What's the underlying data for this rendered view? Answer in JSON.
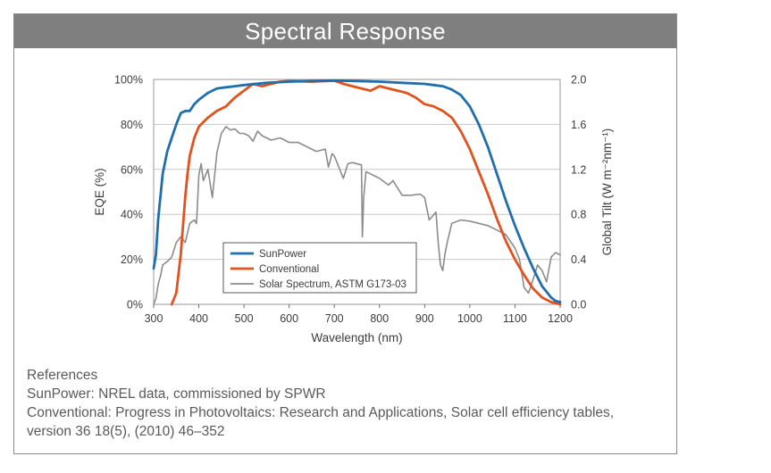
{
  "header": {
    "title": "Spectral Response"
  },
  "references": {
    "heading": "References",
    "lines": [
      "SunPower: NREL data, commissioned by SPWR",
      "Conventional: Progress in Photovoltaics: Research and Applications, Solar cell efficiency tables,",
      "version 36 18(5), (2010) 46–352"
    ]
  },
  "chart_data": {
    "type": "line",
    "title": "",
    "xlabel": "Wavelength (nm)",
    "ylabel": "EQE (%)",
    "y2label": "Global Tilt (W m⁻²nm⁻¹)",
    "xlim": [
      300,
      1200
    ],
    "ylim": [
      0,
      100
    ],
    "y2lim": [
      0,
      2.0
    ],
    "x_ticks": [
      "300",
      "400",
      "500",
      "600",
      "700",
      "800",
      "900",
      "1000",
      "1100",
      "1200"
    ],
    "y_ticks": [
      "0%",
      "20%",
      "40%",
      "60%",
      "80%",
      "100%"
    ],
    "y2_ticks": [
      "0.0",
      "0.4",
      "0.8",
      "1.2",
      "1.6",
      "2.0"
    ],
    "grid": true,
    "legend_placement": "bottom-center",
    "series": [
      {
        "name": "SunPower",
        "color": "#1f6fad",
        "axis": "left",
        "x": [
          300,
          305,
          310,
          320,
          330,
          340,
          350,
          360,
          370,
          380,
          390,
          400,
          420,
          440,
          460,
          480,
          500,
          550,
          600,
          650,
          700,
          750,
          800,
          850,
          900,
          920,
          940,
          960,
          980,
          1000,
          1020,
          1040,
          1060,
          1080,
          1100,
          1120,
          1140,
          1160,
          1180,
          1190,
          1200
        ],
        "values": [
          16,
          22,
          38,
          58,
          68,
          74,
          80,
          85,
          86,
          86,
          89,
          91,
          94,
          96,
          96.5,
          97,
          97.5,
          98.5,
          99,
          99.3,
          99.5,
          99.3,
          99,
          98.5,
          98,
          97.5,
          97,
          95.5,
          93,
          88,
          80,
          70,
          58,
          46,
          35,
          25,
          16,
          8,
          3,
          1.5,
          1
        ]
      },
      {
        "name": "Conventional",
        "color": "#e0531f",
        "axis": "left",
        "x": [
          340,
          350,
          360,
          370,
          375,
          380,
          390,
          400,
          420,
          440,
          460,
          480,
          500,
          520,
          540,
          560,
          580,
          600,
          650,
          700,
          720,
          740,
          760,
          780,
          800,
          820,
          840,
          860,
          880,
          900,
          920,
          940,
          960,
          980,
          1000,
          1020,
          1040,
          1060,
          1080,
          1100,
          1120,
          1140,
          1160,
          1180,
          1200
        ],
        "values": [
          0,
          5,
          22,
          48,
          58,
          66,
          74,
          79,
          83,
          86,
          88,
          92,
          95,
          98,
          97,
          98,
          99,
          99.3,
          99,
          99.5,
          98,
          97,
          96,
          95,
          97,
          96,
          95,
          94,
          92,
          89,
          88,
          86,
          83,
          77,
          69,
          59,
          49,
          38,
          28,
          20,
          13,
          7,
          3,
          1,
          0
        ]
      },
      {
        "name": "Solar Spectrum, ASTM G173-03",
        "color": "#8c8c8c",
        "axis": "right",
        "x": [
          300,
          305,
          310,
          315,
          320,
          330,
          340,
          350,
          360,
          370,
          380,
          390,
          395,
          400,
          405,
          410,
          420,
          430,
          440,
          450,
          460,
          470,
          480,
          490,
          500,
          510,
          520,
          530,
          540,
          560,
          580,
          600,
          620,
          640,
          660,
          680,
          687,
          695,
          700,
          720,
          730,
          740,
          760,
          762,
          765,
          770,
          800,
          820,
          830,
          850,
          870,
          890,
          900,
          910,
          925,
          930,
          935,
          940,
          945,
          950,
          960,
          980,
          1000,
          1020,
          1040,
          1060,
          1080,
          1100,
          1110,
          1120,
          1130,
          1140,
          1150,
          1160,
          1170,
          1180,
          1190,
          1200
        ],
        "values": [
          0.0,
          0.05,
          0.18,
          0.25,
          0.35,
          0.38,
          0.42,
          0.55,
          0.6,
          0.55,
          0.72,
          0.75,
          0.72,
          1.15,
          1.25,
          1.1,
          1.2,
          0.95,
          1.35,
          1.52,
          1.58,
          1.55,
          1.56,
          1.52,
          1.52,
          1.5,
          1.45,
          1.54,
          1.5,
          1.46,
          1.48,
          1.44,
          1.44,
          1.4,
          1.36,
          1.38,
          1.22,
          1.34,
          1.32,
          1.12,
          1.25,
          1.26,
          1.24,
          0.6,
          0.95,
          1.18,
          1.12,
          1.06,
          1.1,
          0.97,
          0.97,
          0.98,
          0.95,
          0.75,
          0.82,
          0.55,
          0.35,
          0.3,
          0.45,
          0.55,
          0.72,
          0.75,
          0.74,
          0.72,
          0.7,
          0.66,
          0.62,
          0.5,
          0.4,
          0.15,
          0.1,
          0.22,
          0.35,
          0.3,
          0.2,
          0.42,
          0.46,
          0.44
        ]
      }
    ]
  }
}
